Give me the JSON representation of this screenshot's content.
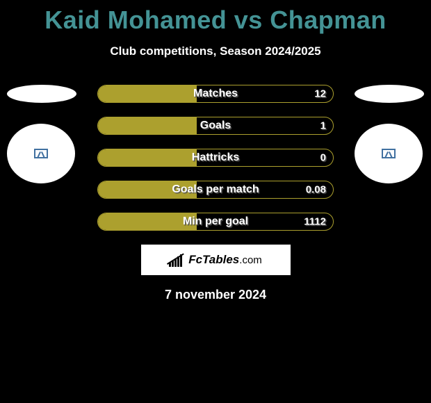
{
  "colors": {
    "background": "#000000",
    "title": "#449395",
    "text": "#ffffff",
    "bar_fill": "#aca02e",
    "bar_border": "#aca02e",
    "brand_bg": "#ffffff",
    "shadow": "#555555"
  },
  "header": {
    "title": "Kaid Mohamed vs Chapman",
    "subtitle": "Club competitions, Season 2024/2025"
  },
  "stats": [
    {
      "label": "Matches",
      "value_right": "12",
      "fill_pct": 42
    },
    {
      "label": "Goals",
      "value_right": "1",
      "fill_pct": 42
    },
    {
      "label": "Hattricks",
      "value_right": "0",
      "fill_pct": 42
    },
    {
      "label": "Goals per match",
      "value_right": "0.08",
      "fill_pct": 42
    },
    {
      "label": "Min per goal",
      "value_right": "1112",
      "fill_pct": 42
    }
  ],
  "brand": {
    "name": "FcTables",
    "suffix": ".com"
  },
  "date": "7 november 2024"
}
